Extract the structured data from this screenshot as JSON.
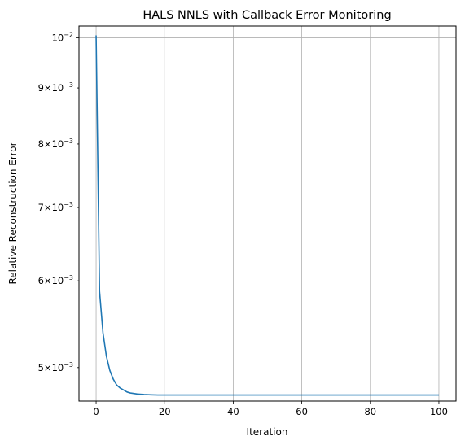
{
  "chart_data": {
    "type": "line",
    "title": "HALS NNLS with Callback Error Monitoring",
    "xlabel": "Iteration",
    "ylabel": "Relative Reconstruction Error",
    "xlim": [
      -5,
      105
    ],
    "ylim": [
      0.00466,
      0.01025
    ],
    "yscale": "log",
    "grid": true,
    "line_color": "#1f77b4",
    "x_ticks": [
      0,
      20,
      40,
      60,
      80,
      100
    ],
    "y_ticks": [
      {
        "value": 0.01,
        "mantissa": "",
        "exponent": "−2"
      },
      {
        "value": 0.009,
        "mantissa": "9",
        "exponent": "−3"
      },
      {
        "value": 0.008,
        "mantissa": "8",
        "exponent": "−3"
      },
      {
        "value": 0.007,
        "mantissa": "7",
        "exponent": "−3"
      },
      {
        "value": 0.006,
        "mantissa": "6",
        "exponent": "−3"
      },
      {
        "value": 0.005,
        "mantissa": "5",
        "exponent": "−3"
      }
    ],
    "series": [
      {
        "x": [
          0,
          1,
          2,
          3,
          4,
          5,
          6,
          7,
          8,
          9,
          10,
          12,
          14,
          16,
          18,
          20,
          25,
          30,
          40,
          50,
          60,
          70,
          80,
          90,
          100
        ],
        "y": [
          0.01005,
          0.00587,
          0.00538,
          0.00512,
          0.00497,
          0.00488,
          0.00482,
          0.00479,
          0.00477,
          0.00475,
          0.00474,
          0.00473,
          0.004725,
          0.004722,
          0.00472,
          0.00472,
          0.00472,
          0.00472,
          0.00472,
          0.00472,
          0.00472,
          0.00472,
          0.00472,
          0.00472,
          0.00472
        ]
      }
    ]
  }
}
